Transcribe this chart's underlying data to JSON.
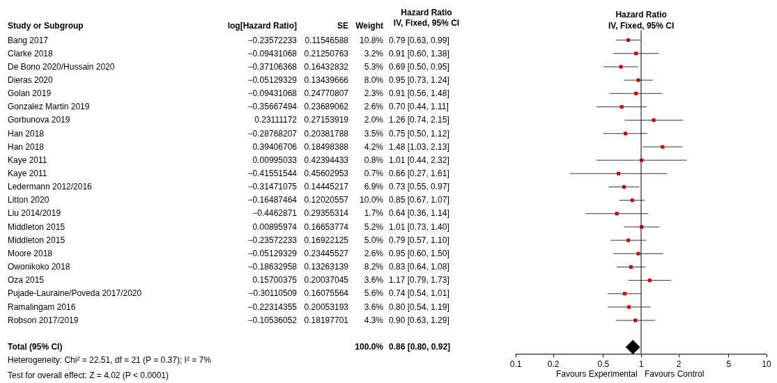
{
  "chart_data": [
    {
      "type": "other",
      "categories": [
        "Study or Subgroup",
        "log[Hazard Ratio]",
        "SE",
        "Weight",
        "Hazard Ratio\nIV, Fixed, 95% CI"
      ],
      "y_categories": [
        "Bang 2017",
        "Clarke 2018",
        "De Bono 2020/Hussain 2020",
        "Dieras 2020",
        "Golan 2019",
        "Gonzalez Martin 2019",
        "Gorbunova 2019",
        "Han 2018",
        "Han 2018",
        "Kaye 2011",
        "Kaye 2011",
        "Ledermann 2012/2016",
        "Litton 2020",
        "Liu 2014/2019",
        "Middleton 2015",
        "Middleton 2015",
        "Moore 2018",
        "Owonikoko 2018",
        "Oza 2015",
        "Pujade-Lauraine/Poveda 2017/2020",
        "Ramalingam 2016",
        "Robson 2017/2019",
        null,
        "Total (95% CI)"
      ],
      "cell_labels": [
        [
          "−0.23572233",
          "0.11546588",
          "10.8%",
          "0.79 [0.63, 0.99]"
        ],
        [
          "−0.09431068",
          "0.21250763",
          "3.2%",
          "0.91 [0.60, 1.38]"
        ],
        [
          "−0.37106368",
          "0.16432832",
          "5.3%",
          "0.69 [0.50, 0.95]"
        ],
        [
          "−0.05129329",
          "0.13439666",
          "8.0%",
          "0.95 [0.73, 1.24]"
        ],
        [
          "−0.09431068",
          "0.24770807",
          "2.3%",
          "0.91 [0.56, 1.48]"
        ],
        [
          "−0.35667494",
          "0.23689062",
          "2.6%",
          "0.70 [0.44, 1.11]"
        ],
        [
          "0.23111172",
          "0.27153919",
          "2.0%",
          "1.26 [0.74, 2.15]"
        ],
        [
          "−0.28768207",
          "0.20381788",
          "3.5%",
          "0.75 [0.50, 1.12]"
        ],
        [
          "0.39406706",
          "0.18498388",
          "4.2%",
          "1.48 [1.03, 2.13]"
        ],
        [
          "0.00995033",
          "0.42394433",
          "0.8%",
          "1.01 [0.44, 2.32]"
        ],
        [
          "−0.41551544",
          "0.45602953",
          "0.7%",
          "0.66 [0.27, 1.61]"
        ],
        [
          "−0.31471075",
          "0.14445217",
          "6.9%",
          "0.73 [0.55, 0.97]"
        ],
        [
          "−0.16487464",
          "0.12020557",
          "10.0%",
          "0.85 [0.67, 1.07]"
        ],
        [
          "−0.4462871",
          "0.29355314",
          "1.7%",
          "0.64 [0.36, 1.14]"
        ],
        [
          "0.00895974",
          "0.16653774",
          "5.2%",
          "1.01 [0.73, 1.40]"
        ],
        [
          "−0.23572233",
          "0.16922125",
          "5.0%",
          "0.79 [0.57, 1.10]"
        ],
        [
          "−0.05129329",
          "0.23445527",
          "2.6%",
          "0.95 [0.60, 1.50]"
        ],
        [
          "−0.18632958",
          "0.13263139",
          "8.2%",
          "0.83 [0.64, 1.08]"
        ],
        [
          "0.15700375",
          "0.20037045",
          "3.6%",
          "1.17 [0.79, 1.73]"
        ],
        [
          "−0.30110509",
          "0.16075564",
          "5.6%",
          "0.74 [0.54, 1.01]"
        ],
        [
          "−0.22314355",
          "0.20053193",
          "3.6%",
          "0.80 [0.54, 1.19]"
        ],
        [
          "−0.10536052",
          "0.18197701",
          "4.3%",
          "0.90 [0.63, 1.29]"
        ],
        null,
        [
          null,
          null,
          "100.0%",
          "0.86 [0.80, 0.92]"
        ]
      ],
      "annotations": [
        "Heterogeneity: Chi² = 22.51, df = 21 (P = 0.37); I² = 7%",
        "Test for overall effect: Z = 4.02 (P < 0.0001)"
      ]
    },
    {
      "type": "scatter",
      "title": "Hazard Ratio\nIV, Fixed, 95% CI",
      "orientation": "horizontal",
      "log": "x",
      "grid": false,
      "categories": [
        null,
        null,
        null,
        null,
        null,
        null,
        null,
        null,
        null,
        null,
        null,
        null,
        null,
        null,
        null,
        null,
        null,
        null,
        null,
        null,
        null,
        null,
        null,
        null
      ],
      "series": [
        {
          "color": "#cc0000",
          "marker": "square",
          "values": [
            0.79,
            0.91,
            0.69,
            0.95,
            0.91,
            0.7,
            1.26,
            0.75,
            1.48,
            1.01,
            0.66,
            0.73,
            0.85,
            0.64,
            1.01,
            0.79,
            0.95,
            0.83,
            1.17,
            0.74,
            0.8,
            0.9,
            null,
            null
          ],
          "errors": [
            [
              0.63,
              0.99
            ],
            [
              0.6,
              1.38
            ],
            [
              0.5,
              0.95
            ],
            [
              0.73,
              1.24
            ],
            [
              0.56,
              1.48
            ],
            [
              0.44,
              1.11
            ],
            [
              0.74,
              2.15
            ],
            [
              0.5,
              1.12
            ],
            [
              1.03,
              2.13
            ],
            [
              0.44,
              2.32
            ],
            [
              0.27,
              1.61
            ],
            [
              0.55,
              0.97
            ],
            [
              0.67,
              1.07
            ],
            [
              0.36,
              1.14
            ],
            [
              0.73,
              1.4
            ],
            [
              0.57,
              1.1
            ],
            [
              0.6,
              1.5
            ],
            [
              0.64,
              1.08
            ],
            [
              0.79,
              1.73
            ],
            [
              0.54,
              1.01
            ],
            [
              0.54,
              1.19
            ],
            [
              0.63,
              1.29
            ],
            null,
            null
          ]
        },
        {
          "color": "#000000",
          "marker": "diamond",
          "values": [
            null,
            null,
            null,
            null,
            null,
            null,
            null,
            null,
            null,
            null,
            null,
            null,
            null,
            null,
            null,
            null,
            null,
            null,
            null,
            null,
            null,
            null,
            null,
            0.86
          ]
        }
      ],
      "xlim": [
        0.1,
        10
      ],
      "xticks": [
        0.1,
        0.2,
        0.5,
        1,
        2,
        5,
        10
      ],
      "ref_lines": [
        {
          "axis": "x",
          "value": 1,
          "color": "#000000"
        }
      ],
      "annotations": [
        "Favours Experimental",
        "Favours Control"
      ]
    }
  ]
}
